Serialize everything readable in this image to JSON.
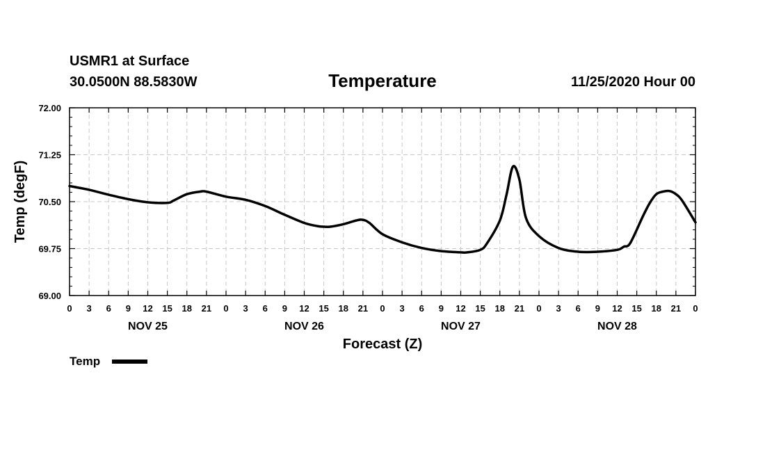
{
  "header": {
    "station": "USMR1 at Surface",
    "location": "30.0500N 88.5830W",
    "title": "Temperature",
    "run": "11/25/2020 Hour 00"
  },
  "legend": {
    "label": "Temp"
  },
  "chart_data": {
    "type": "line",
    "title": "Temperature",
    "xlabel": "Forecast (Z)",
    "ylabel": "Temp (degF)",
    "ylim": [
      69.0,
      72.0
    ],
    "xlim": [
      0,
      96
    ],
    "yticks": [
      "72.00",
      "71.25",
      "70.50",
      "69.75",
      "69.00"
    ],
    "ytick_values": [
      72.0,
      71.25,
      70.5,
      69.75,
      69.0
    ],
    "xtick_labels": [
      "0",
      "3",
      "6",
      "9",
      "12",
      "15",
      "18",
      "21",
      "0",
      "3",
      "6",
      "9",
      "12",
      "15",
      "18",
      "21",
      "0",
      "3",
      "6",
      "9",
      "12",
      "15",
      "18",
      "21",
      "0",
      "3",
      "6",
      "9",
      "12",
      "15",
      "18",
      "21",
      "0"
    ],
    "day_labels": [
      {
        "label": "NOV 25",
        "hour": 12
      },
      {
        "label": "NOV 26",
        "hour": 36
      },
      {
        "label": "NOV 27",
        "hour": 60
      },
      {
        "label": "NOV 28",
        "hour": 84
      }
    ],
    "grid": true,
    "series": [
      {
        "name": "Temp",
        "x": [
          0,
          3,
          6,
          9,
          12,
          15,
          16,
          18,
          20,
          21,
          24,
          27,
          30,
          33,
          36,
          38,
          39,
          40,
          42,
          44,
          45,
          46,
          48,
          51,
          54,
          57,
          60,
          61,
          63,
          64,
          66,
          67,
          68,
          69,
          70,
          72,
          75,
          78,
          81,
          84,
          85,
          86,
          88,
          89,
          90,
          91,
          92,
          93,
          94,
          96
        ],
        "values": [
          70.75,
          70.69,
          70.61,
          70.54,
          70.49,
          70.48,
          70.52,
          70.62,
          70.66,
          70.66,
          70.58,
          70.53,
          70.43,
          70.29,
          70.16,
          70.11,
          70.1,
          70.1,
          70.14,
          70.2,
          70.21,
          70.16,
          69.98,
          69.85,
          69.76,
          69.71,
          69.69,
          69.69,
          69.73,
          69.83,
          70.2,
          70.6,
          71.06,
          70.85,
          70.24,
          69.95,
          69.76,
          69.7,
          69.7,
          69.73,
          69.78,
          69.84,
          70.28,
          70.48,
          70.62,
          70.66,
          70.67,
          70.62,
          70.51,
          70.17
        ]
      }
    ]
  }
}
